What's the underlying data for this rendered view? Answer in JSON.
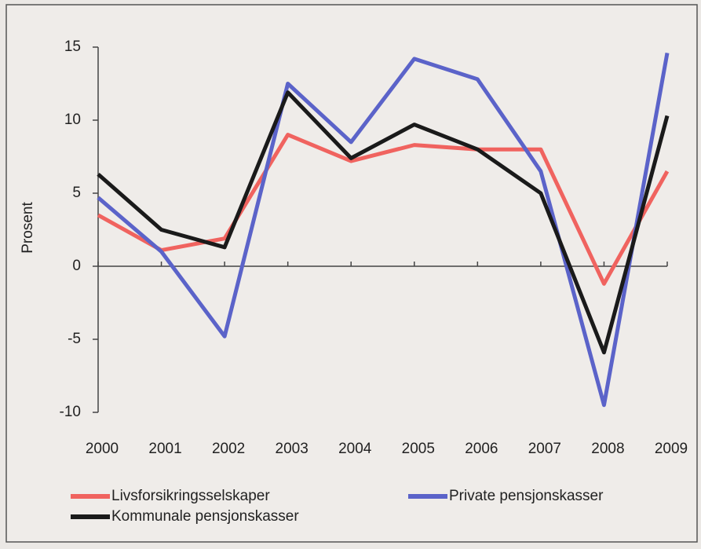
{
  "chart_data": {
    "type": "line",
    "y_label": "Prosent",
    "categories": [
      "2000",
      "2001",
      "2002",
      "2003",
      "2004",
      "2005",
      "2006",
      "2007",
      "2008",
      "2009"
    ],
    "series": [
      {
        "name": "Livsforsikringsselskaper",
        "color": "#f0635f",
        "values": [
          3.5,
          1.1,
          1.9,
          9.0,
          7.2,
          8.3,
          8.0,
          8.0,
          -1.2,
          6.5
        ]
      },
      {
        "name": "Private pensjonskasser",
        "color": "#5b63c9",
        "values": [
          4.7,
          1.0,
          -4.8,
          12.5,
          8.5,
          14.2,
          12.8,
          6.5,
          -9.5,
          14.6
        ]
      },
      {
        "name": "Kommunale pensjonskasser",
        "color": "#1a1a1a",
        "values": [
          6.3,
          2.5,
          1.3,
          11.9,
          7.4,
          9.7,
          8.0,
          5.0,
          -5.9,
          10.3
        ]
      }
    ],
    "ylim": [
      -10,
      15
    ],
    "yticks": [
      -10,
      -5,
      0,
      5,
      10,
      15
    ],
    "grid": false
  }
}
